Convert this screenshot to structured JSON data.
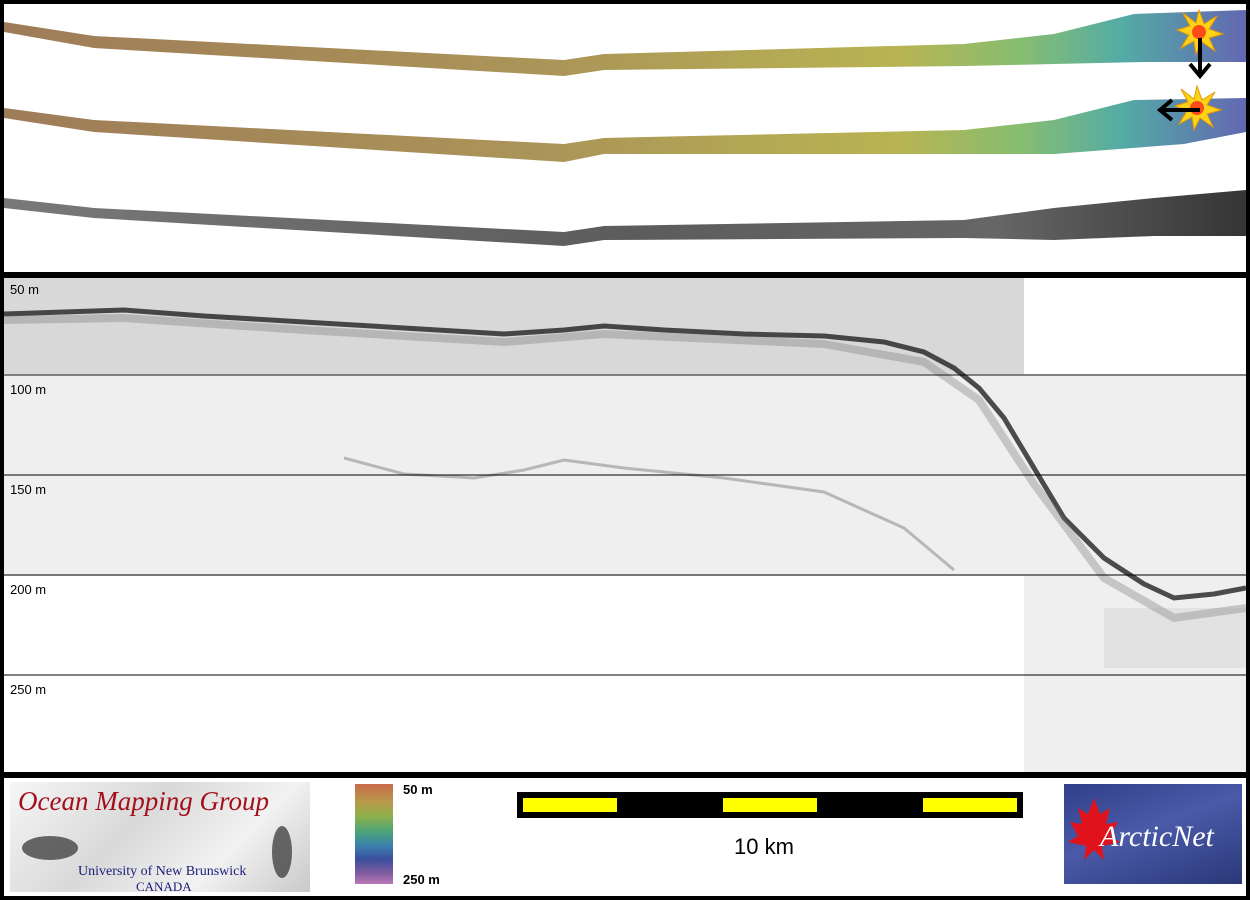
{
  "profile": {
    "depth_labels": [
      "50 m",
      "100 m",
      "150 m",
      "200 m",
      "250 m"
    ]
  },
  "legend": {
    "color_scale_top": "50 m",
    "color_scale_bottom": "250 m",
    "scale_label": "10 km"
  },
  "logos": {
    "ogm_title": "Ocean Mapping Group",
    "ogm_university": "University of New Brunswick",
    "ogm_country": "CANADA",
    "arcticnet": "ArcticNet"
  },
  "colors": {
    "swath_start": "#9a7a55",
    "swath_mid": "#b59a45",
    "swath_green": "#5fb08a",
    "swath_end": "#5a5fae",
    "scale_yellow": "#ffff00",
    "ogm_red": "#a40f1c",
    "arctic_blue": "#2f3f8a"
  },
  "icons": [
    "sun-marker-icon",
    "arrow-down-icon",
    "arrow-left-icon",
    "maple-leaf-icon"
  ]
}
